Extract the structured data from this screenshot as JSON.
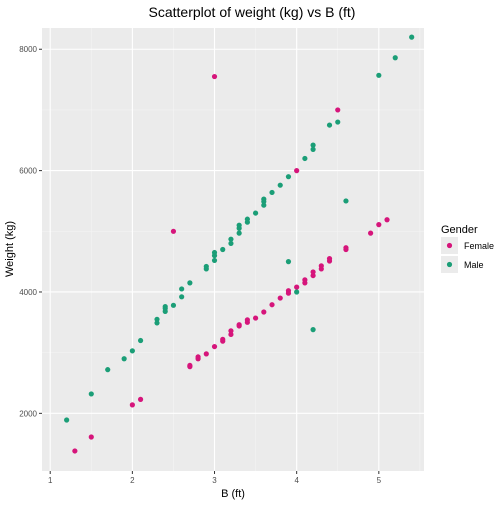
{
  "chart_data": {
    "type": "scatter",
    "title": "Scatterplot of weight (kg) vs B (ft)",
    "xlabel": "B (ft)",
    "ylabel": "Weight (kg)",
    "xlim": [
      0.9,
      5.55
    ],
    "ylim": [
      1050,
      8350
    ],
    "x_ticks": [
      1,
      2,
      3,
      4,
      5
    ],
    "y_ticks": [
      2000,
      4000,
      6000,
      8000
    ],
    "grid": true,
    "legend_position": "right",
    "legend": {
      "title": "Gender",
      "items": [
        {
          "label": "Female",
          "color": "#d6157b"
        },
        {
          "label": "Male",
          "color": "#1b9e77"
        }
      ]
    },
    "series": [
      {
        "name": "Female",
        "color": "#d6157b",
        "points": [
          [
            1.3,
            1380
          ],
          [
            1.5,
            1610
          ],
          [
            2.0,
            2140
          ],
          [
            2.1,
            2230
          ],
          [
            2.5,
            5000
          ],
          [
            2.7,
            2770
          ],
          [
            2.7,
            2790
          ],
          [
            2.8,
            2900
          ],
          [
            2.8,
            2930
          ],
          [
            2.9,
            2980
          ],
          [
            3.0,
            3100
          ],
          [
            3.0,
            7550
          ],
          [
            3.1,
            3190
          ],
          [
            3.1,
            3220
          ],
          [
            3.2,
            3300
          ],
          [
            3.2,
            3360
          ],
          [
            3.3,
            3440
          ],
          [
            3.3,
            3460
          ],
          [
            3.4,
            3500
          ],
          [
            3.4,
            3540
          ],
          [
            3.5,
            3570
          ],
          [
            3.6,
            3670
          ],
          [
            3.7,
            3790
          ],
          [
            3.8,
            3900
          ],
          [
            3.9,
            3980
          ],
          [
            3.9,
            4020
          ],
          [
            4.0,
            4080
          ],
          [
            4.0,
            6000
          ],
          [
            4.1,
            4150
          ],
          [
            4.1,
            4200
          ],
          [
            4.2,
            4270
          ],
          [
            4.2,
            4330
          ],
          [
            4.3,
            4380
          ],
          [
            4.3,
            4430
          ],
          [
            4.4,
            4510
          ],
          [
            4.4,
            4550
          ],
          [
            4.5,
            7000
          ],
          [
            4.6,
            4700
          ],
          [
            4.6,
            4730
          ],
          [
            4.9,
            4970
          ],
          [
            5.0,
            5110
          ],
          [
            5.1,
            5190
          ]
        ]
      },
      {
        "name": "Male",
        "color": "#1b9e77",
        "points": [
          [
            1.2,
            1890
          ],
          [
            1.5,
            2320
          ],
          [
            1.7,
            2720
          ],
          [
            1.9,
            2900
          ],
          [
            2.0,
            3030
          ],
          [
            2.1,
            3200
          ],
          [
            2.3,
            3490
          ],
          [
            2.3,
            3550
          ],
          [
            2.4,
            3680
          ],
          [
            2.4,
            3730
          ],
          [
            2.4,
            3760
          ],
          [
            2.5,
            3780
          ],
          [
            2.6,
            3920
          ],
          [
            2.6,
            4050
          ],
          [
            2.7,
            4150
          ],
          [
            2.9,
            4380
          ],
          [
            2.9,
            4420
          ],
          [
            3.0,
            4520
          ],
          [
            3.0,
            4600
          ],
          [
            3.0,
            4650
          ],
          [
            3.1,
            4700
          ],
          [
            3.2,
            4800
          ],
          [
            3.2,
            4870
          ],
          [
            3.3,
            4970
          ],
          [
            3.3,
            5050
          ],
          [
            3.3,
            5100
          ],
          [
            3.4,
            5150
          ],
          [
            3.4,
            5200
          ],
          [
            3.5,
            5300
          ],
          [
            3.6,
            5430
          ],
          [
            3.6,
            5490
          ],
          [
            3.6,
            5530
          ],
          [
            3.7,
            5640
          ],
          [
            3.8,
            5760
          ],
          [
            3.9,
            5900
          ],
          [
            3.9,
            4500
          ],
          [
            4.0,
            4000
          ],
          [
            4.1,
            6200
          ],
          [
            4.2,
            6350
          ],
          [
            4.2,
            6420
          ],
          [
            4.2,
            3380
          ],
          [
            4.4,
            6750
          ],
          [
            4.5,
            6800
          ],
          [
            4.6,
            5500
          ],
          [
            5.0,
            7570
          ],
          [
            5.2,
            7860
          ],
          [
            5.4,
            8200
          ]
        ]
      }
    ]
  }
}
